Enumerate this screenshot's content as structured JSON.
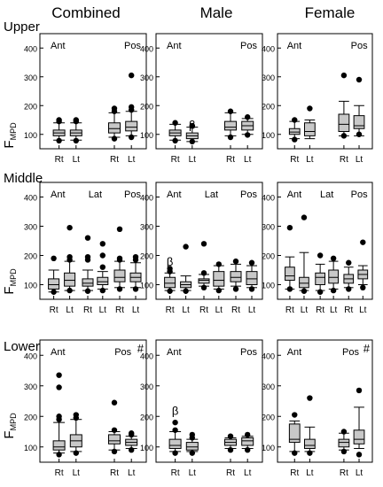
{
  "column_titles": [
    "Combined",
    "Male",
    "Female"
  ],
  "row_labels": [
    "Upper",
    "Middle",
    "Lower"
  ],
  "y_label_main": "F",
  "y_label_sub": "MPD",
  "colors": {
    "box_fill": "#c8c8c8",
    "stroke": "#000000",
    "outlier": "#000000"
  },
  "chart_data": {
    "type": "boxplot",
    "ylim": [
      50,
      450
    ],
    "yticks": [
      100,
      200,
      300,
      400
    ],
    "panels": [
      {
        "row": "Upper",
        "column": "Combined",
        "groups": [
          {
            "label": "Ant",
            "pos": "left"
          },
          {
            "label": "Pos",
            "pos": "right"
          }
        ],
        "marks": [],
        "xlabels": [
          "Rt",
          "Lt",
          "Rt",
          "Lt"
        ],
        "boxes": [
          {
            "x": "Rt",
            "q1": 95,
            "median": 105,
            "q3": 115,
            "whislo": 80,
            "whishi": 140,
            "outliers": [
              78,
              145,
              150
            ]
          },
          {
            "x": "Lt",
            "q1": 95,
            "median": 105,
            "q3": 115,
            "whislo": 80,
            "whishi": 140,
            "outliers": [
              78,
              145,
              150
            ]
          },
          {
            "x": "Rt",
            "q1": 105,
            "median": 120,
            "q3": 140,
            "whislo": 90,
            "whishi": 175,
            "outliers": [
              85,
              180,
              190
            ]
          },
          {
            "x": "Lt",
            "q1": 112,
            "median": 125,
            "q3": 145,
            "whislo": 95,
            "whishi": 180,
            "outliers": [
              90,
              185,
              195,
              305
            ]
          }
        ]
      },
      {
        "row": "Upper",
        "column": "Male",
        "groups": [
          {
            "label": "Ant",
            "pos": "left"
          },
          {
            "label": "Pos",
            "pos": "right"
          }
        ],
        "marks": [
          {
            "text": "β",
            "box": 1,
            "value": 120
          }
        ],
        "xlabels": [
          "Rt",
          "Lt",
          "Rt",
          "Lt"
        ],
        "boxes": [
          {
            "x": "Rt",
            "q1": 95,
            "median": 105,
            "q3": 115,
            "whislo": 80,
            "whishi": 135,
            "outliers": [
              78,
              140
            ]
          },
          {
            "x": "Lt",
            "q1": 85,
            "median": 95,
            "q3": 105,
            "whislo": 75,
            "whishi": 125,
            "outliers": [
              75,
              130
            ]
          },
          {
            "x": "Rt",
            "q1": 115,
            "median": 125,
            "q3": 145,
            "whislo": 95,
            "whishi": 175,
            "outliers": [
              90,
              180
            ]
          },
          {
            "x": "Lt",
            "q1": 115,
            "median": 130,
            "q3": 145,
            "whislo": 100,
            "whishi": 155,
            "outliers": [
              98,
              160
            ]
          }
        ]
      },
      {
        "row": "Upper",
        "column": "Female",
        "groups": [
          {
            "label": "Ant",
            "pos": "left"
          },
          {
            "label": "Pos",
            "pos": "right"
          }
        ],
        "marks": [],
        "xlabels": [
          "Rt",
          "Lt",
          "Rt",
          "Lt"
        ],
        "boxes": [
          {
            "x": "Rt",
            "q1": 100,
            "median": 108,
            "q3": 120,
            "whislo": 85,
            "whishi": 145,
            "outliers": [
              82,
              150
            ]
          },
          {
            "x": "Lt",
            "q1": 95,
            "median": 110,
            "q3": 140,
            "whislo": 85,
            "whishi": 150,
            "outliers": [
              190
            ]
          },
          {
            "x": "Rt",
            "q1": 110,
            "median": 135,
            "q3": 170,
            "whislo": 95,
            "whishi": 215,
            "outliers": [
              95,
              305
            ]
          },
          {
            "x": "Lt",
            "q1": 120,
            "median": 130,
            "q3": 165,
            "whislo": 95,
            "whishi": 200,
            "outliers": [
              100,
              290
            ]
          }
        ]
      },
      {
        "row": "Middle",
        "column": "Combined",
        "groups": [
          {
            "label": "Ant",
            "pos": "left"
          },
          {
            "label": "Lat",
            "pos": "mid"
          },
          {
            "label": "Pos",
            "pos": "right"
          }
        ],
        "marks": [],
        "xlabels": [
          "Rt",
          "Lt",
          "Rt",
          "Lt",
          "Rt",
          "Lt"
        ],
        "boxes": [
          {
            "x": "Rt",
            "q1": 85,
            "median": 100,
            "q3": 120,
            "whislo": 75,
            "whishi": 150,
            "outliers": [
              75,
              190
            ]
          },
          {
            "x": "Lt",
            "q1": 95,
            "median": 115,
            "q3": 140,
            "whislo": 80,
            "whishi": 180,
            "outliers": [
              80,
              185,
              195,
              295
            ]
          },
          {
            "x": "Rt",
            "q1": 95,
            "median": 105,
            "q3": 120,
            "whislo": 80,
            "whishi": 150,
            "outliers": [
              78,
              185,
              195,
              260
            ]
          },
          {
            "x": "Lt",
            "q1": 100,
            "median": 110,
            "q3": 125,
            "whislo": 85,
            "whishi": 145,
            "outliers": [
              80,
              160,
              200,
              240
            ]
          },
          {
            "x": "Rt",
            "q1": 110,
            "median": 125,
            "q3": 150,
            "whislo": 90,
            "whishi": 180,
            "outliers": [
              85,
              185,
              190,
              290
            ]
          },
          {
            "x": "Lt",
            "q1": 110,
            "median": 125,
            "q3": 140,
            "whislo": 90,
            "whishi": 175,
            "outliers": [
              85,
              185,
              195
            ]
          }
        ]
      },
      {
        "row": "Middle",
        "column": "Male",
        "groups": [
          {
            "label": "Ant",
            "pos": "left"
          },
          {
            "label": "Lat",
            "pos": "mid"
          },
          {
            "label": "Pos",
            "pos": "right"
          }
        ],
        "marks": [
          {
            "text": "β",
            "box": 0,
            "value": 165
          }
        ],
        "xlabels": [
          "Rt",
          "Lt",
          "Rt",
          "Lt",
          "Rt",
          "Lt"
        ],
        "boxes": [
          {
            "x": "Rt",
            "q1": 90,
            "median": 105,
            "q3": 125,
            "whislo": 80,
            "whishi": 140,
            "outliers": [
              78,
              145,
              155
            ]
          },
          {
            "x": "Lt",
            "q1": 90,
            "median": 100,
            "q3": 110,
            "whislo": 80,
            "whishi": 130,
            "outliers": [
              78,
              230
            ]
          },
          {
            "x": "Rt",
            "q1": 105,
            "median": 115,
            "q3": 120,
            "whislo": 95,
            "whishi": 135,
            "outliers": [
              90,
              140,
              240
            ]
          },
          {
            "x": "Lt",
            "q1": 95,
            "median": 115,
            "q3": 145,
            "whislo": 85,
            "whishi": 165,
            "outliers": [
              80,
              170
            ]
          },
          {
            "x": "Rt",
            "q1": 110,
            "median": 125,
            "q3": 145,
            "whislo": 95,
            "whishi": 170,
            "outliers": [
              85,
              180
            ]
          },
          {
            "x": "Lt",
            "q1": 100,
            "median": 120,
            "q3": 145,
            "whislo": 90,
            "whishi": 165,
            "outliers": [
              85,
              175
            ]
          }
        ]
      },
      {
        "row": "Middle",
        "column": "Female",
        "groups": [
          {
            "label": "Ant",
            "pos": "left"
          },
          {
            "label": "Lat",
            "pos": "mid"
          },
          {
            "label": "Pos",
            "pos": "right"
          }
        ],
        "marks": [],
        "xlabels": [
          "Rt",
          "Lt",
          "Rt",
          "Lt",
          "Rt",
          "Lt"
        ],
        "boxes": [
          {
            "x": "Rt",
            "q1": 115,
            "median": 130,
            "q3": 160,
            "whislo": 85,
            "whishi": 195,
            "outliers": [
              85,
              295
            ]
          },
          {
            "x": "Lt",
            "q1": 90,
            "median": 105,
            "q3": 125,
            "whislo": 80,
            "whishi": 210,
            "outliers": [
              78,
              330
            ]
          },
          {
            "x": "Rt",
            "q1": 100,
            "median": 125,
            "q3": 140,
            "whislo": 80,
            "whishi": 170,
            "outliers": [
              75,
              200
            ]
          },
          {
            "x": "Lt",
            "q1": 105,
            "median": 125,
            "q3": 150,
            "whislo": 85,
            "whishi": 180,
            "outliers": [
              80,
              190
            ]
          },
          {
            "x": "Rt",
            "q1": 105,
            "median": 120,
            "q3": 135,
            "whislo": 90,
            "whishi": 160,
            "outliers": [
              85,
              175
            ]
          },
          {
            "x": "Lt",
            "q1": 120,
            "median": 135,
            "q3": 150,
            "whislo": 100,
            "whishi": 165,
            "outliers": [
              90,
              245
            ]
          }
        ]
      },
      {
        "row": "Lower",
        "column": "Combined",
        "groups": [
          {
            "label": "Ant",
            "pos": "left"
          },
          {
            "label": "Pos",
            "pos": "right"
          }
        ],
        "marks": [
          {
            "text": "#",
            "corner": "top-right"
          }
        ],
        "xlabels": [
          "Rt",
          "Lt",
          "Rt",
          "Lt"
        ],
        "boxes": [
          {
            "x": "Rt",
            "q1": 90,
            "median": 100,
            "q3": 120,
            "whislo": 80,
            "whishi": 180,
            "outliers": [
              75,
              190,
              200,
              295,
              335
            ]
          },
          {
            "x": "Lt",
            "q1": 100,
            "median": 120,
            "q3": 140,
            "whislo": 85,
            "whishi": 190,
            "outliers": [
              80,
              195,
              205
            ]
          },
          {
            "x": "Rt",
            "q1": 110,
            "median": 120,
            "q3": 140,
            "whislo": 90,
            "whishi": 150,
            "outliers": [
              85,
              155,
              245
            ]
          },
          {
            "x": "Lt",
            "q1": 105,
            "median": 115,
            "q3": 125,
            "whislo": 95,
            "whishi": 135,
            "outliers": [
              90,
              140,
              145
            ]
          }
        ]
      },
      {
        "row": "Lower",
        "column": "Male",
        "groups": [
          {
            "label": "Ant",
            "pos": "left"
          },
          {
            "label": "Pos",
            "pos": "right"
          }
        ],
        "marks": [
          {
            "text": "β",
            "box": 0,
            "value": 205
          }
        ],
        "xlabels": [
          "Rt",
          "Lt",
          "Rt",
          "Lt"
        ],
        "boxes": [
          {
            "x": "Rt",
            "q1": 95,
            "median": 105,
            "q3": 125,
            "whislo": 85,
            "whishi": 150,
            "outliers": [
              80,
              155,
              180
            ]
          },
          {
            "x": "Lt",
            "q1": 90,
            "median": 100,
            "q3": 115,
            "whislo": 85,
            "whishi": 125,
            "outliers": [
              80,
              130,
              140
            ]
          },
          {
            "x": "Rt",
            "q1": 105,
            "median": 115,
            "q3": 125,
            "whislo": 95,
            "whishi": 130,
            "outliers": [
              90,
              135
            ]
          },
          {
            "x": "Lt",
            "q1": 105,
            "median": 120,
            "q3": 130,
            "whislo": 95,
            "whishi": 135,
            "outliers": [
              90,
              140
            ]
          }
        ]
      },
      {
        "row": "Lower",
        "column": "Female",
        "groups": [
          {
            "label": "Ant",
            "pos": "left"
          },
          {
            "label": "Pos",
            "pos": "right"
          }
        ],
        "marks": [
          {
            "text": "#",
            "corner": "top-right"
          }
        ],
        "xlabels": [
          "Rt",
          "Lt",
          "Rt",
          "Lt"
        ],
        "boxes": [
          {
            "x": "Rt",
            "q1": 115,
            "median": 125,
            "q3": 175,
            "whislo": 85,
            "whishi": 185,
            "outliers": [
              80,
              205
            ]
          },
          {
            "x": "Lt",
            "q1": 95,
            "median": 105,
            "q3": 125,
            "whislo": 85,
            "whishi": 165,
            "outliers": [
              80,
              260
            ]
          },
          {
            "x": "Rt",
            "q1": 100,
            "median": 115,
            "q3": 125,
            "whislo": 90,
            "whishi": 145,
            "outliers": [
              85,
              150
            ]
          },
          {
            "x": "Lt",
            "q1": 110,
            "median": 125,
            "q3": 155,
            "whislo": 95,
            "whishi": 230,
            "outliers": [
              75,
              285
            ]
          }
        ]
      }
    ]
  }
}
